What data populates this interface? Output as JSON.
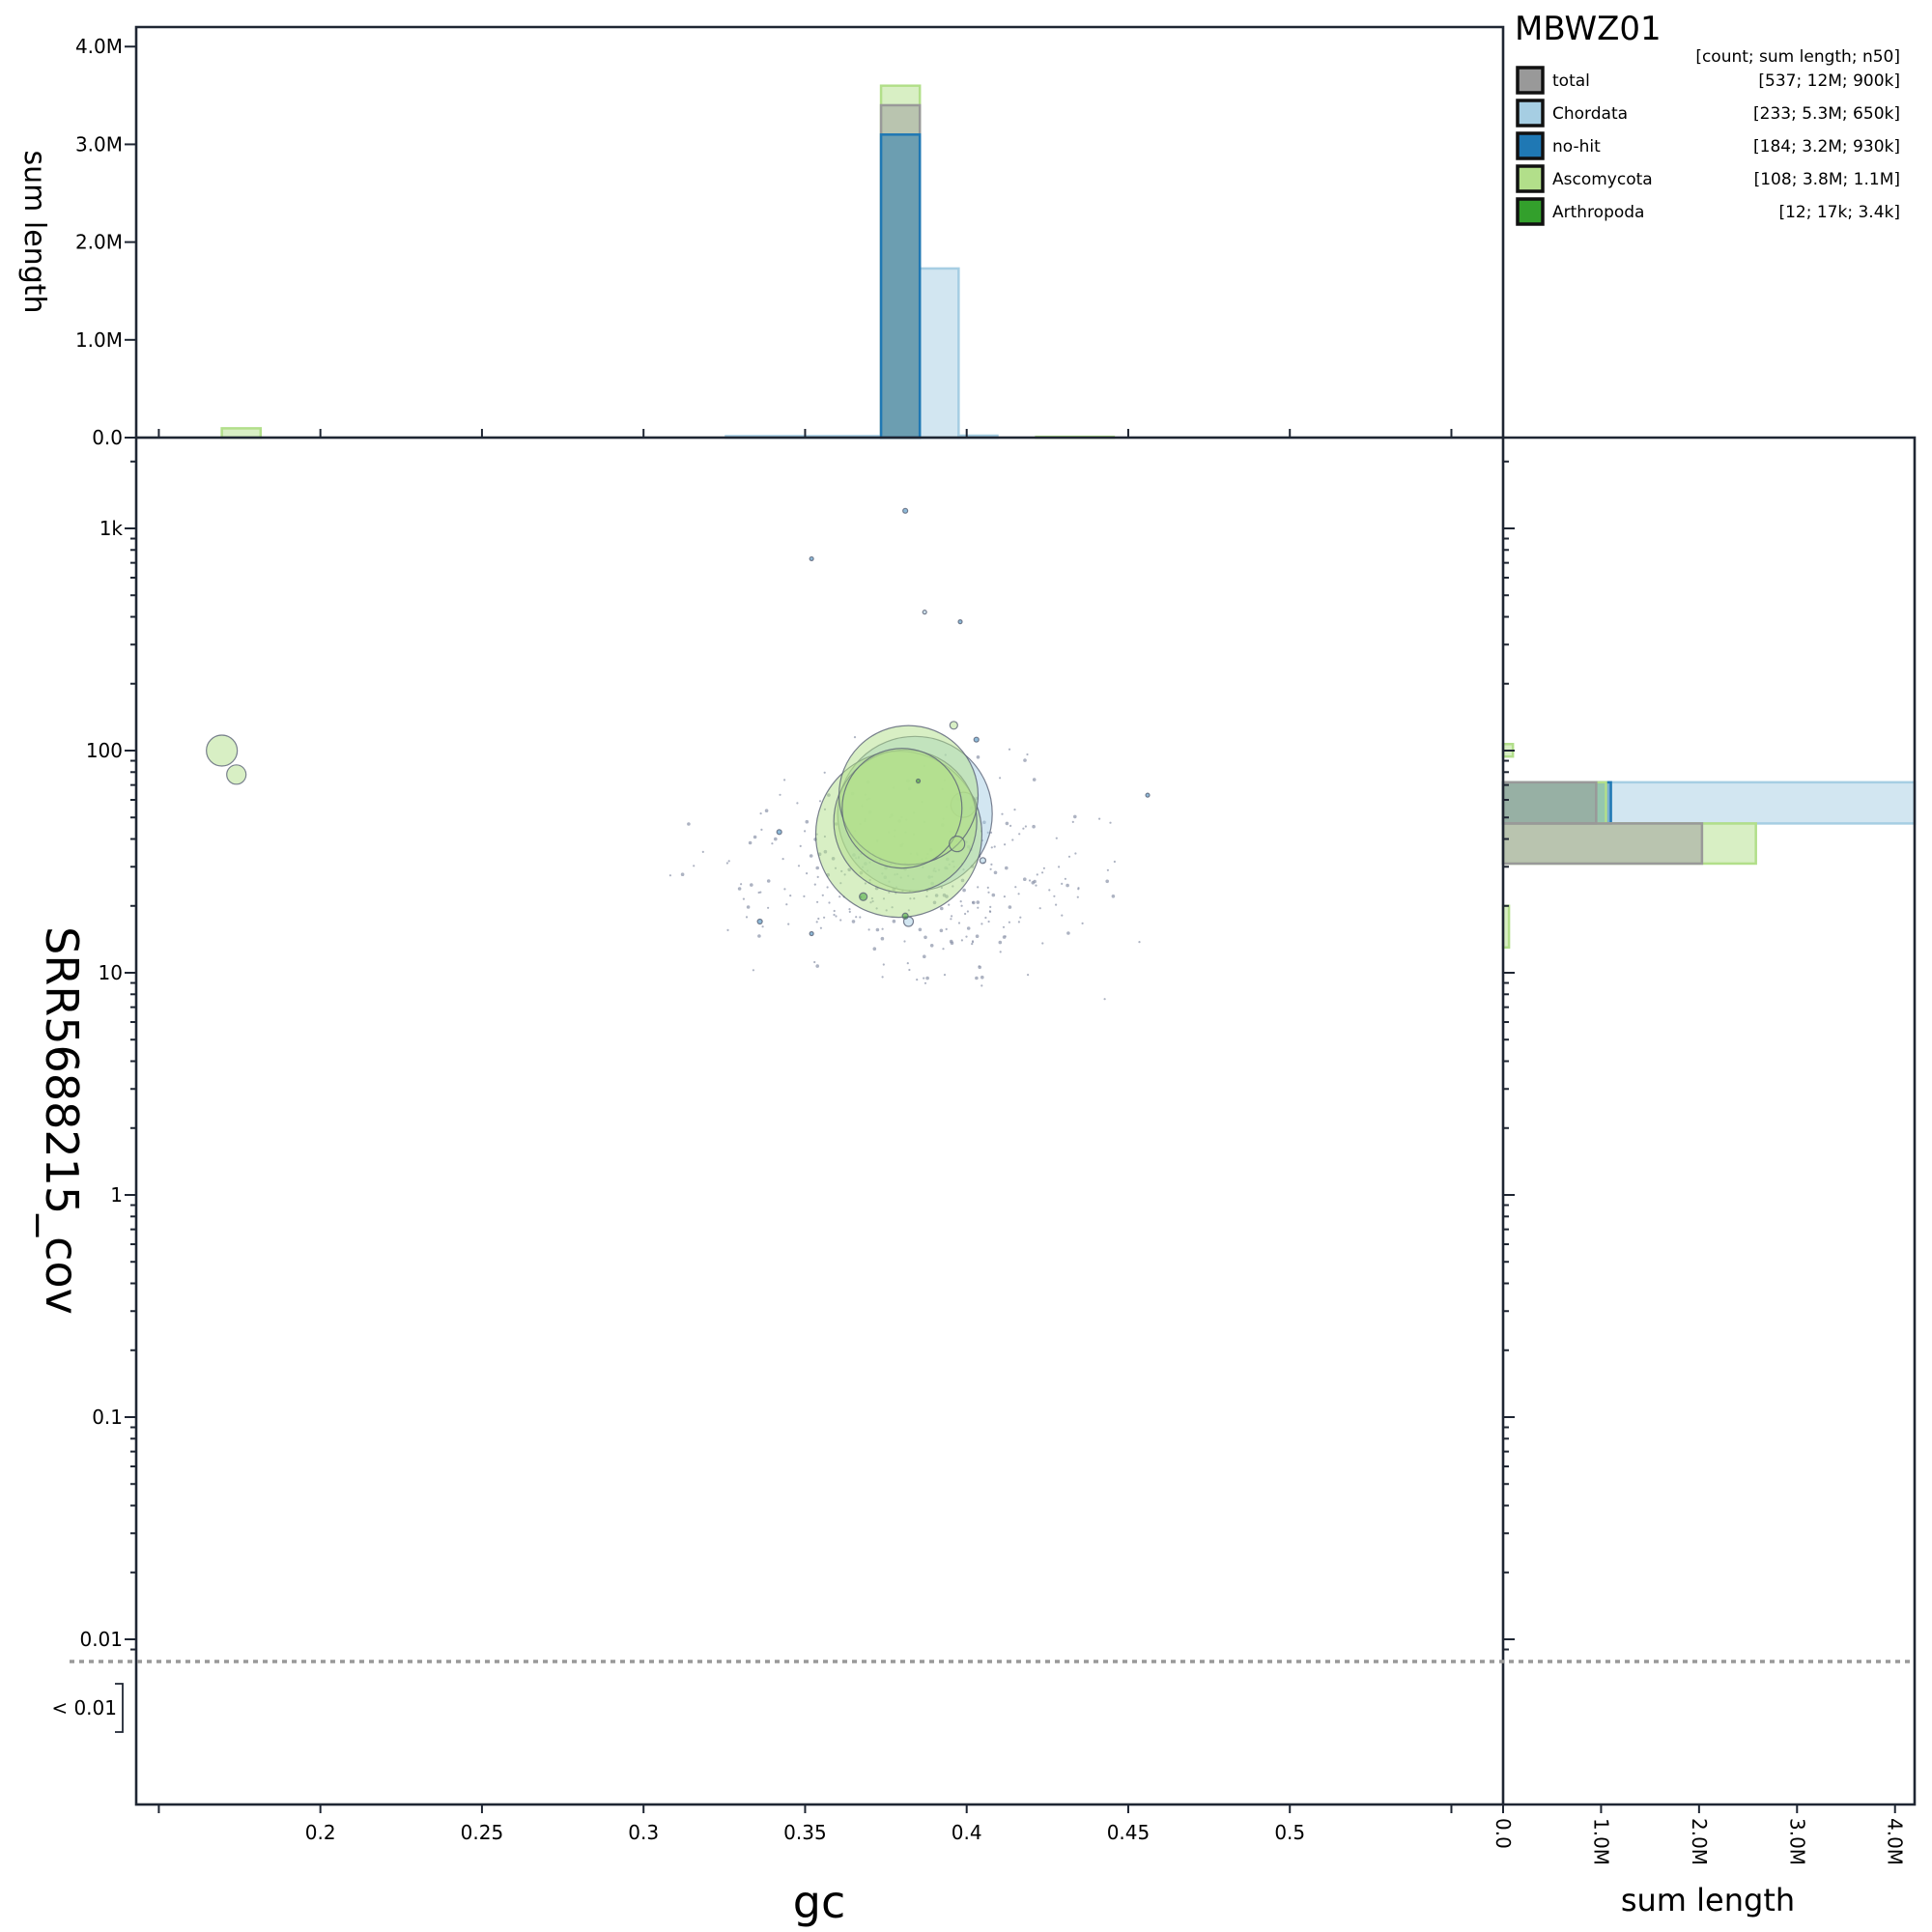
{
  "chart_data": {
    "type": "scatter",
    "title": "MBWZ01",
    "xlabel": "gc",
    "ylabel": "SRR5688215_cov",
    "top_hist_ylabel": "sum length",
    "right_hist_xlabel": "sum length",
    "xlim": [
      0.143,
      0.566
    ],
    "ylim_log": [
      0.0021,
      1.8
    ],
    "y_scale": "log",
    "x_ticks": [
      {
        "value": 0.2,
        "label": "0.2"
      },
      {
        "value": 0.25,
        "label": "0.25"
      },
      {
        "value": 0.3,
        "label": "0.3"
      },
      {
        "value": 0.35,
        "label": "0.35"
      },
      {
        "value": 0.4,
        "label": "0.4"
      },
      {
        "value": 0.45,
        "label": "0.45"
      },
      {
        "value": 0.5,
        "label": "0.5"
      }
    ],
    "y_ticks": [
      {
        "value": 1000,
        "label": "1k"
      },
      {
        "value": 100,
        "label": "100"
      },
      {
        "value": 10,
        "label": "10"
      },
      {
        "value": 1,
        "label": "1"
      },
      {
        "value": 0.1,
        "label": "0.1"
      },
      {
        "value": 0.01,
        "label": "0.01"
      }
    ],
    "below_threshold_label": "< 0.01",
    "threshold_value": 0.008,
    "hist_ticks": [
      {
        "value": 0,
        "label": "0.0"
      },
      {
        "value": 1000000,
        "label": "1.0M"
      },
      {
        "value": 2000000,
        "label": "2.0M"
      },
      {
        "value": 3000000,
        "label": "3.0M"
      },
      {
        "value": 4000000,
        "label": "4.0M"
      }
    ],
    "hist_max": 4200000,
    "legend": {
      "header": "[count; sum length; n50]",
      "placement": "top-right",
      "entries": [
        {
          "name": "total",
          "stats": "[537; 12M; 900k]",
          "color": "#999999"
        },
        {
          "name": "Chordata",
          "stats": "[233; 5.3M; 650k]",
          "color": "#a6cee3"
        },
        {
          "name": "no-hit",
          "stats": "[184; 3.2M; 930k]",
          "color": "#1f78b4"
        },
        {
          "name": "Ascomycota",
          "stats": "[108; 3.8M; 1.1M]",
          "color": "#b2df8a"
        },
        {
          "name": "Arthropoda",
          "stats": "[12; 17k; 3.4k]",
          "color": "#33a02c"
        }
      ]
    },
    "series": [
      {
        "name": "Chordata",
        "color": "#a6cee3",
        "points": [
          {
            "x": 0.384,
            "y": 52,
            "r": 80
          },
          {
            "x": 0.399,
            "y": 57,
            "r": 13
          },
          {
            "x": 0.382,
            "y": 17,
            "r": 5
          },
          {
            "x": 0.405,
            "y": 32,
            "r": 3
          },
          {
            "x": 0.387,
            "y": 420,
            "r": 2
          }
        ]
      },
      {
        "name": "no-hit",
        "color": "#1f78b4",
        "points": [
          {
            "x": 0.381,
            "y": 1200,
            "r": 2.5
          },
          {
            "x": 0.352,
            "y": 730,
            "r": 2
          },
          {
            "x": 0.398,
            "y": 380,
            "r": 2
          },
          {
            "x": 0.403,
            "y": 112,
            "r": 2.5
          },
          {
            "x": 0.342,
            "y": 43,
            "r": 2.5
          },
          {
            "x": 0.336,
            "y": 17,
            "r": 2.5
          },
          {
            "x": 0.385,
            "y": 72,
            "r": 2
          },
          {
            "x": 0.456,
            "y": 63,
            "r": 2
          },
          {
            "x": 0.352,
            "y": 15,
            "r": 2
          }
        ]
      },
      {
        "name": "Ascomycota",
        "color": "#b2df8a",
        "points": [
          {
            "x": 0.379,
            "y": 42,
            "r": 86
          },
          {
            "x": 0.382,
            "y": 63,
            "r": 72
          },
          {
            "x": 0.381,
            "y": 48,
            "r": 74
          },
          {
            "x": 0.38,
            "y": 55,
            "r": 62
          },
          {
            "x": 0.1695,
            "y": 100,
            "r": 16
          },
          {
            "x": 0.174,
            "y": 78,
            "r": 10
          },
          {
            "x": 0.397,
            "y": 38,
            "r": 8
          },
          {
            "x": 0.396,
            "y": 130,
            "r": 4
          }
        ]
      },
      {
        "name": "Arthropoda",
        "color": "#33a02c",
        "points": [
          {
            "x": 0.368,
            "y": 22,
            "r": 4
          },
          {
            "x": 0.381,
            "y": 18,
            "r": 3
          },
          {
            "x": 0.385,
            "y": 73,
            "r": 2
          }
        ]
      }
    ],
    "top_hist": [
      {
        "series": "Ascomycota",
        "bins": [
          {
            "x0": 0.1695,
            "x1": 0.1815,
            "value": 95000
          },
          {
            "x0": 0.3735,
            "x1": 0.3855,
            "value": 3600000
          },
          {
            "x0": 0.4215,
            "x1": 0.4455,
            "value": 8000
          }
        ]
      },
      {
        "series": "total",
        "bins": [
          {
            "x0": 0.3735,
            "x1": 0.3855,
            "value": 3400000
          }
        ]
      },
      {
        "series": "Chordata",
        "bins": [
          {
            "x0": 0.3255,
            "x1": 0.3735,
            "value": 15000
          },
          {
            "x0": 0.3855,
            "x1": 0.3975,
            "value": 1730000
          },
          {
            "x0": 0.3975,
            "x1": 0.4095,
            "value": 20000
          }
        ]
      },
      {
        "series": "no-hit",
        "bins": [
          {
            "x0": 0.3735,
            "x1": 0.3855,
            "value": 3100000
          }
        ]
      }
    ],
    "right_hist": [
      {
        "series": "Chordata",
        "bins": [
          {
            "y0": 47,
            "y1": 72,
            "value": 4200000
          }
        ]
      },
      {
        "series": "no-hit",
        "bins": [
          {
            "y0": 47,
            "y1": 72,
            "value": 1100000
          }
        ]
      },
      {
        "series": "Ascomycota",
        "bins": [
          {
            "y0": 94,
            "y1": 107,
            "value": 100000
          },
          {
            "y0": 47,
            "y1": 72,
            "value": 1050000
          },
          {
            "y0": 31,
            "y1": 47,
            "value": 2580000
          },
          {
            "y0": 13,
            "y1": 20,
            "value": 60000
          }
        ]
      },
      {
        "series": "total",
        "bins": [
          {
            "y0": 47,
            "y1": 72,
            "value": 950000
          },
          {
            "y0": 31,
            "y1": 47,
            "value": 2030000
          }
        ]
      }
    ]
  }
}
